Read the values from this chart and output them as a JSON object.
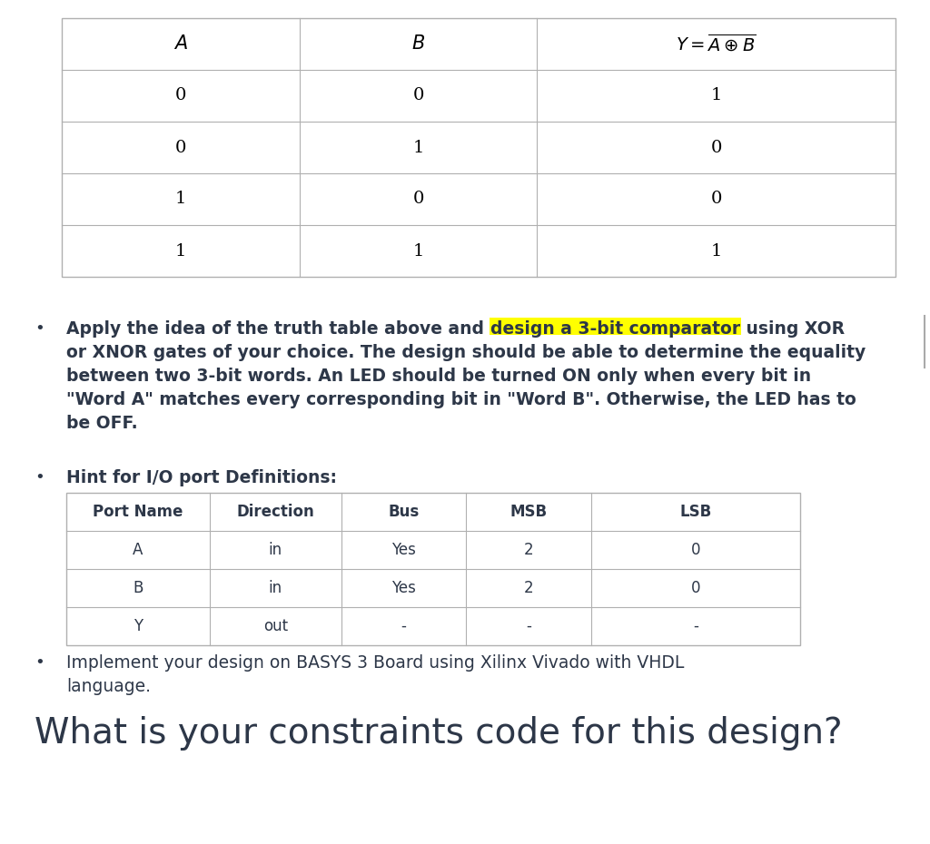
{
  "bg_color": "#ffffff",
  "text_color": "#2d3748",
  "table_line_color": "#b0b0b0",
  "highlight_color": "#ffff00",
  "truth_table": {
    "rows": [
      [
        "0",
        "0",
        "1"
      ],
      [
        "0",
        "1",
        "0"
      ],
      [
        "1",
        "0",
        "0"
      ],
      [
        "1",
        "1",
        "1"
      ]
    ]
  },
  "port_table": {
    "headers": [
      "Port Name",
      "Direction",
      "Bus",
      "MSB",
      "LSB"
    ],
    "rows": [
      [
        "A",
        "in",
        "Yes",
        "2",
        "0"
      ],
      [
        "B",
        "in",
        "Yes",
        "2",
        "0"
      ],
      [
        "Y",
        "out",
        "-",
        "-",
        "-"
      ]
    ]
  },
  "bullet1_part1": "Apply the idea of the truth table above and ",
  "bullet1_highlight": "design a 3-bit comparator",
  "bullet1_part2": " using XOR",
  "bullet1_line2": "or XNOR gates of your choice. The design should be able to determine the equality",
  "bullet1_line3": "between two 3-bit words. An LED should be turned ON only when every bit in",
  "bullet1_line4": "\"Word A\" matches every corresponding bit in \"Word B\". Otherwise, the LED has to",
  "bullet1_line5": "be OFF.",
  "hint_label": "Hint for I/O port Definitions:",
  "implement_text": "Implement your design on BASYS 3 Board using Xilinx Vivado with VHDL",
  "implement_text2": "language.",
  "question_text": "What is your constraints code for this design?"
}
